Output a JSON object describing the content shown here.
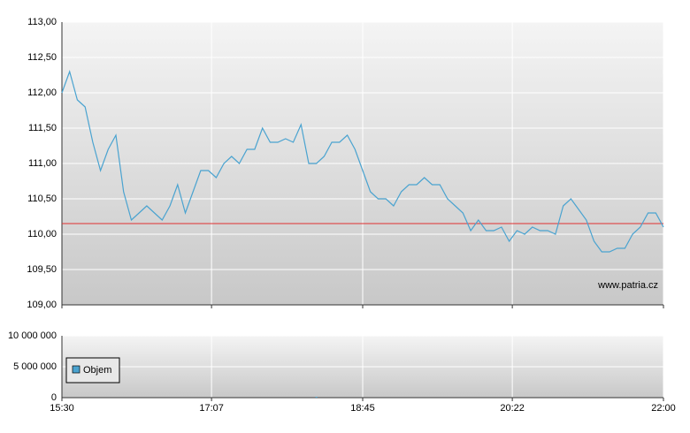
{
  "chart_data": [
    {
      "type": "line",
      "xlim": [
        "15:30",
        "22:00"
      ],
      "xticks": [
        "15:30",
        "17:07",
        "18:45",
        "20:22",
        "22:00"
      ],
      "ylim": [
        109,
        113
      ],
      "yticks": [
        {
          "value": 109,
          "label": "109,00"
        },
        {
          "value": 109.5,
          "label": "109,50"
        },
        {
          "value": 110,
          "label": "110,00"
        },
        {
          "value": 110.5,
          "label": "110,50"
        },
        {
          "value": 111,
          "label": "111,00"
        },
        {
          "value": 111.5,
          "label": "111,50"
        },
        {
          "value": 112,
          "label": "112,00"
        },
        {
          "value": 112.5,
          "label": "112,50"
        },
        {
          "value": 113,
          "label": "113,00"
        }
      ],
      "grid": true,
      "reference_line": {
        "value": 110.15,
        "color": "#e03030"
      },
      "watermark": "www.patria.cz",
      "x": [
        "15:30",
        "15:35",
        "15:40",
        "15:45",
        "15:50",
        "15:55",
        "16:00",
        "16:05",
        "16:10",
        "16:15",
        "16:20",
        "16:25",
        "16:30",
        "16:35",
        "16:40",
        "16:45",
        "16:50",
        "16:55",
        "17:00",
        "17:05",
        "17:10",
        "17:15",
        "17:20",
        "17:25",
        "17:30",
        "17:35",
        "17:40",
        "17:45",
        "17:50",
        "17:55",
        "18:00",
        "18:05",
        "18:10",
        "18:15",
        "18:20",
        "18:25",
        "18:30",
        "18:35",
        "18:40",
        "18:45",
        "18:50",
        "18:55",
        "19:00",
        "19:05",
        "19:10",
        "19:15",
        "19:20",
        "19:25",
        "19:30",
        "19:35",
        "19:40",
        "19:45",
        "19:50",
        "19:55",
        "20:00",
        "20:05",
        "20:10",
        "20:15",
        "20:20",
        "20:25",
        "20:30",
        "20:35",
        "20:40",
        "20:45",
        "20:50",
        "20:55",
        "21:00",
        "21:05",
        "21:10",
        "21:15",
        "21:20",
        "21:25",
        "21:30",
        "21:35",
        "21:40",
        "21:45",
        "21:50",
        "21:55",
        "22:00"
      ],
      "series": [
        {
          "color": "#4aa3d0",
          "values": [
            112.0,
            112.3,
            111.9,
            111.8,
            111.3,
            110.9,
            111.2,
            111.4,
            110.6,
            110.2,
            110.3,
            110.4,
            110.3,
            110.2,
            110.4,
            110.7,
            110.3,
            110.6,
            110.9,
            110.9,
            110.8,
            111.0,
            111.1,
            111.0,
            111.2,
            111.2,
            111.5,
            111.3,
            111.3,
            111.35,
            111.3,
            111.55,
            111.0,
            111.0,
            111.1,
            111.3,
            111.3,
            111.4,
            111.2,
            110.9,
            110.6,
            110.5,
            110.5,
            110.4,
            110.6,
            110.7,
            110.7,
            110.8,
            110.7,
            110.7,
            110.5,
            110.4,
            110.3,
            110.05,
            110.2,
            110.05,
            110.05,
            110.1,
            109.9,
            110.05,
            110.0,
            110.1,
            110.05,
            110.05,
            110.0,
            110.4,
            110.5,
            110.35,
            110.2,
            109.9,
            109.75,
            109.75,
            109.8,
            109.8,
            110.0,
            110.1,
            110.3,
            110.3,
            110.1
          ]
        }
      ]
    },
    {
      "type": "bar",
      "xlim": [
        "15:30",
        "22:00"
      ],
      "xticks": [
        "15:30",
        "17:07",
        "18:45",
        "20:22",
        "22:00"
      ],
      "ylim": [
        0,
        10000000
      ],
      "yticks": [
        0,
        {
          "value": 5000000,
          "label": "5 000 000"
        },
        {
          "value": 10000000,
          "label": "10 000 000"
        }
      ],
      "grid": true,
      "x": [
        "15:30",
        "15:35",
        "15:40",
        "15:45",
        "15:50",
        "15:55",
        "16:00",
        "16:05",
        "16:10",
        "16:15",
        "16:20",
        "16:25",
        "16:30",
        "16:35",
        "16:40",
        "16:45",
        "16:50",
        "16:55",
        "17:00",
        "17:05",
        "17:10",
        "17:15",
        "17:20",
        "17:25",
        "17:30",
        "17:35",
        "17:40",
        "17:45",
        "17:50",
        "17:55",
        "18:00",
        "18:05",
        "18:10",
        "18:15",
        "18:20",
        "18:25",
        "18:30",
        "18:35",
        "18:40",
        "18:45",
        "18:50",
        "18:55",
        "19:00",
        "19:05",
        "19:10",
        "19:15",
        "19:20",
        "19:25",
        "19:30",
        "19:35",
        "19:40",
        "19:45",
        "19:50",
        "19:55",
        "20:00",
        "20:05",
        "20:10",
        "20:15",
        "20:20",
        "20:25",
        "20:30",
        "20:35",
        "20:40",
        "20:45",
        "20:50",
        "20:55",
        "21:00",
        "21:05",
        "21:10",
        "21:15",
        "21:20",
        "21:25",
        "21:30",
        "21:35",
        "21:40",
        "21:45",
        "21:50",
        "21:55",
        "22:00"
      ],
      "series": [
        {
          "name": "Objem",
          "color": "#4aa3d0",
          "values": [
            0,
            0,
            0,
            0,
            0,
            0,
            0,
            0,
            0,
            0,
            0,
            0,
            0,
            0,
            0,
            0,
            0,
            0,
            0,
            0,
            0,
            0,
            0,
            0,
            0,
            0,
            0,
            0,
            0,
            0,
            0,
            0,
            0,
            150000,
            0,
            0,
            0,
            0,
            0,
            0,
            0,
            0,
            0,
            0,
            0,
            0,
            0,
            0,
            0,
            0,
            0,
            0,
            0,
            0,
            0,
            0,
            0,
            0,
            0,
            0,
            0,
            0,
            0,
            0,
            0,
            0,
            0,
            0,
            0,
            0,
            0,
            0,
            0,
            0,
            0,
            0,
            0,
            0,
            0
          ]
        }
      ]
    }
  ]
}
